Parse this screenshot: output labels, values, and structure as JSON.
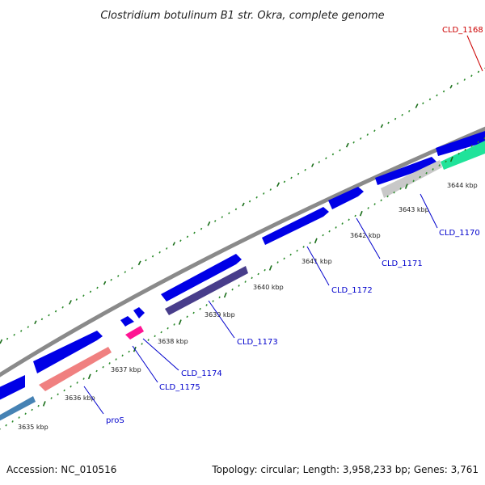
{
  "title": "Clostridium botulinum B1 str. Okra, complete genome",
  "colors": {
    "backbone": "#8a8a8a",
    "forward_gene": "#0000e6",
    "tick_major": "#1a6e1a",
    "tick_minor": "#2a8a2a",
    "label_blue": "#0000cc",
    "label_red": "#cc0000"
  },
  "ticks": [
    {
      "label": "3635 kbp",
      "kbp": 3635
    },
    {
      "label": "3636 kbp",
      "kbp": 3636
    },
    {
      "label": "3637 kbp",
      "kbp": 3637
    },
    {
      "label": "3638 kbp",
      "kbp": 3638
    },
    {
      "label": "3639 kbp",
      "kbp": 3639
    },
    {
      "label": "3640 kbp",
      "kbp": 3640
    },
    {
      "label": "3641 kbp",
      "kbp": 3641
    },
    {
      "label": "3642 kbp",
      "kbp": 3642
    },
    {
      "label": "3643 kbp",
      "kbp": 3643
    },
    {
      "label": "3644 kbp",
      "kbp": 3644
    }
  ],
  "gene_labels": [
    {
      "text": "proS",
      "color": "#0000cc"
    },
    {
      "text": "CLD_1175",
      "color": "#0000cc"
    },
    {
      "text": "CLD_1174",
      "color": "#0000cc"
    },
    {
      "text": "CLD_1173",
      "color": "#0000cc"
    },
    {
      "text": "CLD_1172",
      "color": "#0000cc"
    },
    {
      "text": "CLD_1171",
      "color": "#0000cc"
    },
    {
      "text": "CLD_1170",
      "color": "#0000cc"
    },
    {
      "text": "CLD_1168",
      "color": "#cc0000"
    }
  ],
  "footer": {
    "accession": "Accession: NC_010516",
    "topology": "Topology: circular; Length: 3,958,233 bp; Genes: 3,761"
  }
}
